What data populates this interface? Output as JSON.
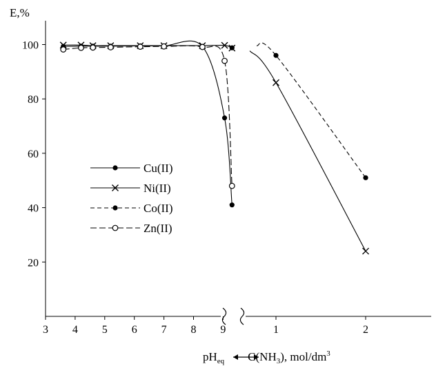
{
  "chart_data": {
    "type": "line",
    "ylabel": "E,%",
    "xlabel": {
      "left_part": "pH",
      "left_subscript": "eq",
      "right_part_prefix": "C(NH",
      "right_part_subscript": "3",
      "right_part_suffix": "), mol/dm",
      "right_part_superscript": "3"
    },
    "y_ticks": [
      "20",
      "40",
      "60",
      "80",
      "100"
    ],
    "ylim": [
      0,
      107
    ],
    "ph_axis": {
      "range": [
        3,
        9.7
      ],
      "ticks": [
        "3",
        "4",
        "5",
        "6",
        "7",
        "8",
        "9"
      ]
    },
    "conc_axis": {
      "range": [
        0.8,
        2.9
      ],
      "ticks": [
        "1",
        "2"
      ]
    },
    "axis_break": true,
    "grid": false,
    "legend_position": "center-left",
    "series": [
      {
        "name": "Cu(II)",
        "line": "solid",
        "marker": "filled-circle",
        "ph_points": [
          [
            3.6,
            99.3
          ],
          [
            4.2,
            99.4
          ],
          [
            4.6,
            99.4
          ],
          [
            5.2,
            99.4
          ],
          [
            6.2,
            99.5
          ],
          [
            7.0,
            99.5
          ],
          [
            8.3,
            99.3
          ],
          [
            9.05,
            73
          ],
          [
            9.3,
            41
          ]
        ],
        "conc_points": []
      },
      {
        "name": "Ni(II)",
        "line": "solid",
        "marker": "cross",
        "ph_points": [
          [
            3.6,
            99.8
          ],
          [
            4.2,
            99.8
          ],
          [
            4.6,
            99.6
          ],
          [
            5.2,
            99.6
          ],
          [
            6.2,
            99.6
          ],
          [
            7.0,
            99.6
          ],
          [
            8.3,
            99.6
          ],
          [
            9.05,
            99.7
          ],
          [
            9.3,
            98.7
          ]
        ],
        "conc_points": [
          [
            1.0,
            86
          ],
          [
            2.0,
            24
          ]
        ]
      },
      {
        "name": "Co(II)",
        "line": "dashed",
        "marker": "filled-circle",
        "ph_points": [
          [
            9.3,
            98.8
          ]
        ],
        "conc_points": [
          [
            1.0,
            96
          ],
          [
            2.0,
            51
          ]
        ]
      },
      {
        "name": "Zn(II)",
        "line": "longdash",
        "marker": "open-circle",
        "ph_points": [
          [
            3.6,
            98.2
          ],
          [
            4.2,
            98.8
          ],
          [
            4.6,
            98.9
          ],
          [
            5.2,
            99.0
          ],
          [
            6.2,
            99.2
          ],
          [
            7.0,
            99.3
          ],
          [
            8.3,
            99.1
          ],
          [
            9.05,
            94
          ],
          [
            9.3,
            48
          ]
        ],
        "conc_points": []
      }
    ]
  }
}
